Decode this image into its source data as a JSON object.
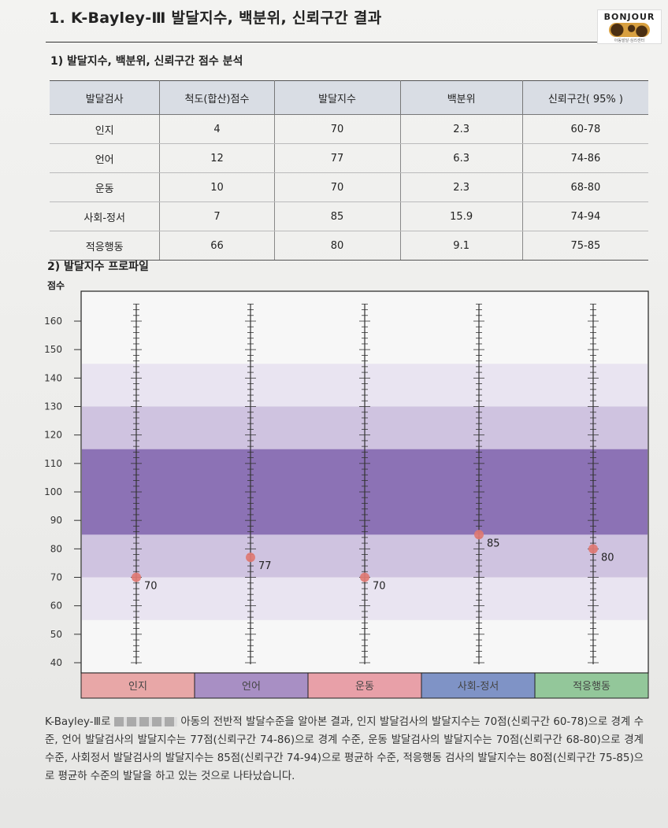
{
  "doc": {
    "title": "1. K-Bayley-Ⅲ 발달지수, 백분위, 신뢰구간 결과",
    "logo_text": "BONJOUR",
    "logo_tagline": "아동발달·심리센터",
    "section1": "1) 발달지수, 백분위, 신뢰구간 점수 분석",
    "section2": "2) 발달지수 프로파일",
    "ylabel": "점수",
    "paragraph_before": "K-Bayley-Ⅲ로",
    "paragraph_after": "아동의 전반적 발달수준을 알아본 결과, 인지 발달검사의 발달지수는 70점(신뢰구간 60-78)으로 경계 수준, 언어 발달검사의 발달지수는 77점(신뢰구간 74-86)으로 경계 수준, 운동 발달검사의 발달지수는 70점(신뢰구간 68-80)으로 경계 수준, 사회정서 발달검사의 발달지수는 85점(신뢰구간 74-94)으로 평균하 수준, 적응행동 검사의 발달지수는 80점(신뢰구간 75-85)으로 평균하 수준의 발달을 하고 있는 것으로 나타났습니다."
  },
  "table": {
    "headers": [
      "발달검사",
      "척도(합산)점수",
      "발달지수",
      "백분위",
      "신뢰구간( 95% )"
    ],
    "rows": [
      [
        "인지",
        "4",
        "70",
        "2.3",
        "60-78"
      ],
      [
        "언어",
        "12",
        "77",
        "6.3",
        "74-86"
      ],
      [
        "운동",
        "10",
        "70",
        "2.3",
        "68-80"
      ],
      [
        "사회-정서",
        "7",
        "85",
        "15.9",
        "74-94"
      ],
      [
        "적응행동",
        "66",
        "80",
        "9.1",
        "75-85"
      ]
    ]
  },
  "chart_data": {
    "type": "scatter",
    "categories": [
      "인지",
      "언어",
      "운동",
      "사회-정서",
      "적응행동"
    ],
    "values": [
      70,
      77,
      70,
      85,
      80
    ],
    "point_labels": [
      "70",
      "77",
      "70",
      "85",
      "80"
    ],
    "category_colors": [
      "#e8a7a7",
      "#a88fc4",
      "#e8a0a8",
      "#7f93c6",
      "#93c79a"
    ],
    "ylabel": "점수",
    "ylim": [
      40,
      165
    ],
    "yticks": [
      40,
      50,
      60,
      70,
      80,
      90,
      100,
      110,
      120,
      130,
      140,
      150,
      160
    ],
    "bands": [
      {
        "from": 55,
        "to": 145,
        "color": "#e9e4f1"
      },
      {
        "from": 70,
        "to": 130,
        "color": "#cfc3e0"
      },
      {
        "from": 85,
        "to": 115,
        "color": "#8c72b5"
      }
    ],
    "point_color": "#e07a73"
  }
}
